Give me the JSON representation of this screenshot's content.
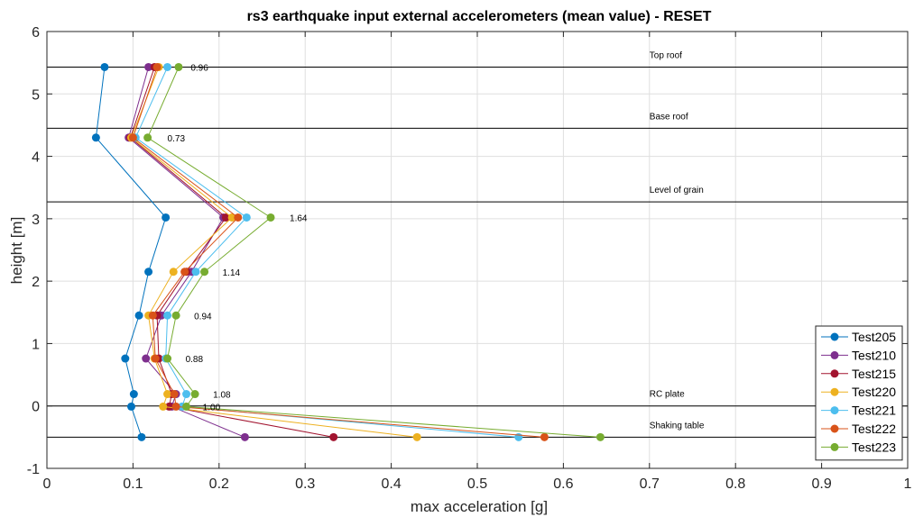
{
  "chart_data": {
    "type": "line",
    "title": "rs3 earthquake input external accelerometers (mean value) - RESET",
    "xlabel": "max acceleration [g]",
    "ylabel": "height [m]",
    "xlim": [
      0,
      1
    ],
    "ylim": [
      -1,
      6
    ],
    "xticks": [
      "0",
      "0.1",
      "0.2",
      "0.3",
      "0.4",
      "0.5",
      "0.6",
      "0.7",
      "0.8",
      "0.9",
      "1"
    ],
    "yticks": [
      "-1",
      "0",
      "1",
      "2",
      "3",
      "4",
      "5",
      "6"
    ],
    "grid": true,
    "legend_position": "bottom-right",
    "heights": [
      -0.5,
      -0.01,
      0.19,
      0.76,
      1.45,
      2.15,
      3.02,
      4.3,
      5.43
    ],
    "series": [
      {
        "name": "Test205",
        "color": "#0072BD",
        "values": [
          0.11,
          0.098,
          0.101,
          0.091,
          0.107,
          0.118,
          0.138,
          0.057,
          0.067
        ]
      },
      {
        "name": "Test210",
        "color": "#7E2F8E",
        "values": [
          0.23,
          0.145,
          0.15,
          0.115,
          0.133,
          0.168,
          0.205,
          0.095,
          0.118
        ]
      },
      {
        "name": "Test215",
        "color": "#A2142F",
        "values": [
          0.333,
          0.142,
          0.145,
          0.13,
          0.128,
          0.162,
          0.208,
          0.097,
          0.125
        ]
      },
      {
        "name": "Test220",
        "color": "#EDB120",
        "values": [
          0.43,
          0.135,
          0.14,
          0.125,
          0.118,
          0.147,
          0.215,
          0.098,
          0.13
        ]
      },
      {
        "name": "Test221",
        "color": "#4DBEEE",
        "values": [
          0.548,
          0.157,
          0.162,
          0.138,
          0.14,
          0.173,
          0.232,
          0.103,
          0.14
        ]
      },
      {
        "name": "Test222",
        "color": "#D95319",
        "values": [
          0.578,
          0.15,
          0.148,
          0.126,
          0.123,
          0.16,
          0.222,
          0.1,
          0.128
        ]
      },
      {
        "name": "Test223",
        "color": "#77AC30",
        "values": [
          0.643,
          0.162,
          0.172,
          0.14,
          0.15,
          0.183,
          0.26,
          0.117,
          0.153
        ]
      }
    ],
    "reference_lines": [
      {
        "y": 5.43,
        "label": "Top roof"
      },
      {
        "y": 4.45,
        "label": "Base roof"
      },
      {
        "y": 3.27,
        "label": "Level of grain"
      },
      {
        "y": 0,
        "label": "RC plate"
      },
      {
        "y": -0.5,
        "label": "Shaking table"
      }
    ],
    "ratio_annotations": [
      {
        "x": 0.167,
        "y": 5.43,
        "text": "0.96"
      },
      {
        "x": 0.14,
        "y": 4.3,
        "text": "0.73"
      },
      {
        "x": 0.282,
        "y": 3.02,
        "text": "1.64"
      },
      {
        "x": 0.204,
        "y": 2.15,
        "text": "1.14"
      },
      {
        "x": 0.171,
        "y": 1.45,
        "text": "0.94"
      },
      {
        "x": 0.161,
        "y": 0.76,
        "text": "0.88"
      },
      {
        "x": 0.193,
        "y": 0.19,
        "text": "1.08"
      },
      {
        "x": 0.181,
        "y": -0.01,
        "text": "1.00"
      }
    ]
  }
}
